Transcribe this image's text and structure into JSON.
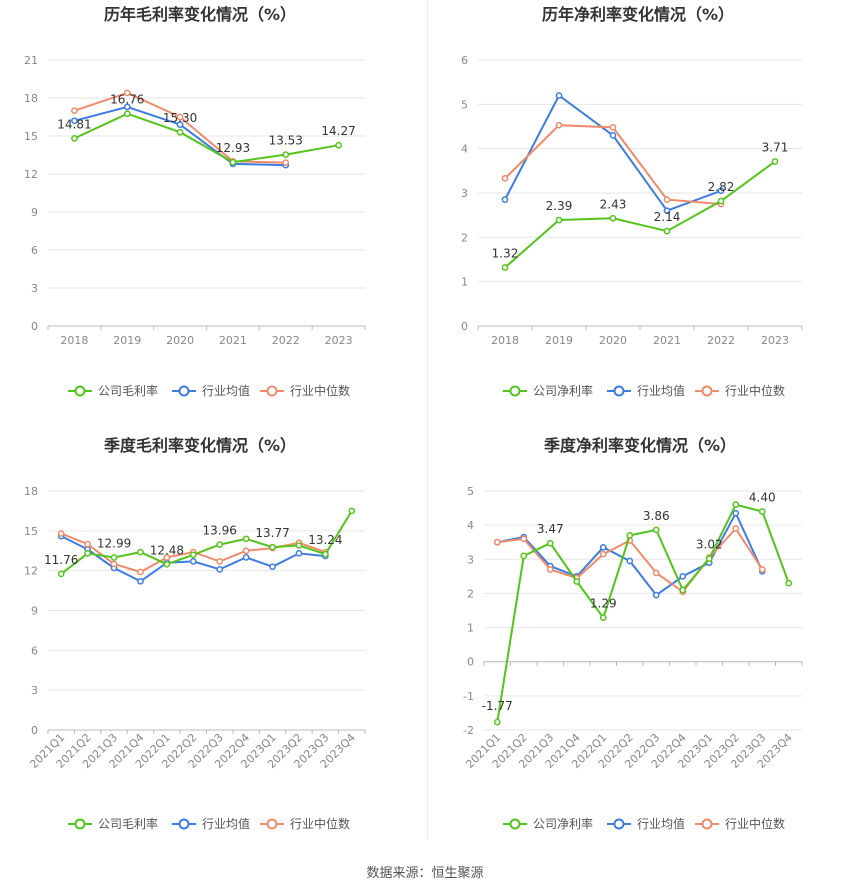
{
  "source_note": "数据来源：恒生聚源",
  "colors": {
    "company": "#52c41a",
    "industry_avg": "#3d7ce0",
    "industry_median": "#f08a6a"
  },
  "chart_data": [
    {
      "id": "annual-gross",
      "type": "line",
      "title": "历年毛利率变化情况（%）",
      "categories": [
        "2018",
        "2019",
        "2020",
        "2021",
        "2022",
        "2023"
      ],
      "yticks": [
        "0",
        "3",
        "6",
        "9",
        "12",
        "15",
        "18",
        "21"
      ],
      "ylim": [
        0,
        21
      ],
      "series": [
        {
          "name": "公司毛利率",
          "role": "company",
          "values": [
            14.81,
            16.76,
            15.3,
            12.93,
            13.53,
            14.27
          ],
          "labels": [
            "14.81",
            "16.76",
            "15.30",
            "12.93",
            "13.53",
            "14.27"
          ]
        },
        {
          "name": "行业均值",
          "role": "industry_avg",
          "values": [
            16.2,
            17.3,
            15.9,
            12.8,
            12.7,
            null
          ]
        },
        {
          "name": "行业中位数",
          "role": "industry_median",
          "values": [
            17.0,
            18.4,
            16.5,
            13.0,
            12.9,
            null
          ]
        }
      ]
    },
    {
      "id": "annual-net",
      "type": "line",
      "title": "历年净利率变化情况（%）",
      "categories": [
        "2018",
        "2019",
        "2020",
        "2021",
        "2022",
        "2023"
      ],
      "yticks": [
        "0",
        "1",
        "2",
        "3",
        "4",
        "5",
        "6"
      ],
      "ylim": [
        0,
        6
      ],
      "series": [
        {
          "name": "公司净利率",
          "role": "company",
          "values": [
            1.32,
            2.39,
            2.43,
            2.14,
            2.82,
            3.71
          ],
          "labels": [
            "1.32",
            "2.39",
            "2.43",
            "2.14",
            "2.82",
            "3.71"
          ]
        },
        {
          "name": "行业均值",
          "role": "industry_avg",
          "values": [
            2.85,
            5.2,
            4.3,
            2.6,
            3.05,
            null
          ]
        },
        {
          "name": "行业中位数",
          "role": "industry_median",
          "values": [
            3.33,
            4.53,
            4.48,
            2.85,
            2.75,
            null
          ]
        }
      ]
    },
    {
      "id": "quarterly-gross",
      "type": "line",
      "title": "季度毛利率变化情况（%）",
      "categories": [
        "2021Q1",
        "2021Q2",
        "2021Q3",
        "2021Q4",
        "2022Q1",
        "2022Q2",
        "2022Q3",
        "2022Q4",
        "2023Q1",
        "2023Q2",
        "2023Q3",
        "2023Q4"
      ],
      "yticks": [
        "0",
        "3",
        "6",
        "9",
        "12",
        "15",
        "18"
      ],
      "ylim": [
        0,
        18
      ],
      "series": [
        {
          "name": "公司毛利率",
          "role": "company",
          "values": [
            11.76,
            13.3,
            12.99,
            13.4,
            12.48,
            13.2,
            13.96,
            14.4,
            13.77,
            13.9,
            13.24,
            16.5
          ],
          "labels": [
            "11.76",
            "",
            "12.99",
            "",
            "12.48",
            "",
            "13.96",
            "",
            "13.77",
            "",
            "13.24",
            ""
          ]
        },
        {
          "name": "行业均值",
          "role": "industry_avg",
          "values": [
            14.6,
            13.6,
            12.2,
            11.2,
            12.6,
            12.7,
            12.1,
            13.0,
            12.3,
            13.3,
            13.1,
            null
          ]
        },
        {
          "name": "行业中位数",
          "role": "industry_median",
          "values": [
            14.8,
            14.0,
            12.5,
            11.9,
            13.0,
            13.4,
            12.7,
            13.5,
            13.7,
            14.1,
            13.4,
            null
          ]
        }
      ]
    },
    {
      "id": "quarterly-net",
      "type": "line",
      "title": "季度净利率变化情况（%）",
      "categories": [
        "2021Q1",
        "2021Q2",
        "2021Q3",
        "2021Q4",
        "2022Q1",
        "2022Q2",
        "2022Q3",
        "2022Q4",
        "2023Q1",
        "2023Q2",
        "2023Q3",
        "2023Q4"
      ],
      "yticks": [
        "-2",
        "-1",
        "0",
        "1",
        "2",
        "3",
        "4",
        "5"
      ],
      "ylim": [
        -2,
        5
      ],
      "series": [
        {
          "name": "公司净利率",
          "role": "company",
          "values": [
            -1.77,
            3.1,
            3.47,
            2.35,
            1.29,
            3.7,
            3.86,
            2.1,
            3.02,
            4.6,
            4.4,
            2.3
          ],
          "labels": [
            "-1.77",
            "",
            "3.47",
            "",
            "1.29",
            "",
            "3.86",
            "",
            "3.02",
            "",
            "4.40",
            ""
          ]
        },
        {
          "name": "行业均值",
          "role": "industry_avg",
          "values": [
            3.5,
            3.65,
            2.8,
            2.5,
            3.35,
            2.95,
            1.95,
            2.5,
            2.9,
            4.35,
            2.65,
            null
          ]
        },
        {
          "name": "行业中位数",
          "role": "industry_median",
          "values": [
            3.5,
            3.6,
            2.7,
            2.45,
            3.15,
            3.55,
            2.6,
            2.05,
            3.05,
            3.9,
            2.7,
            null
          ]
        }
      ]
    }
  ]
}
